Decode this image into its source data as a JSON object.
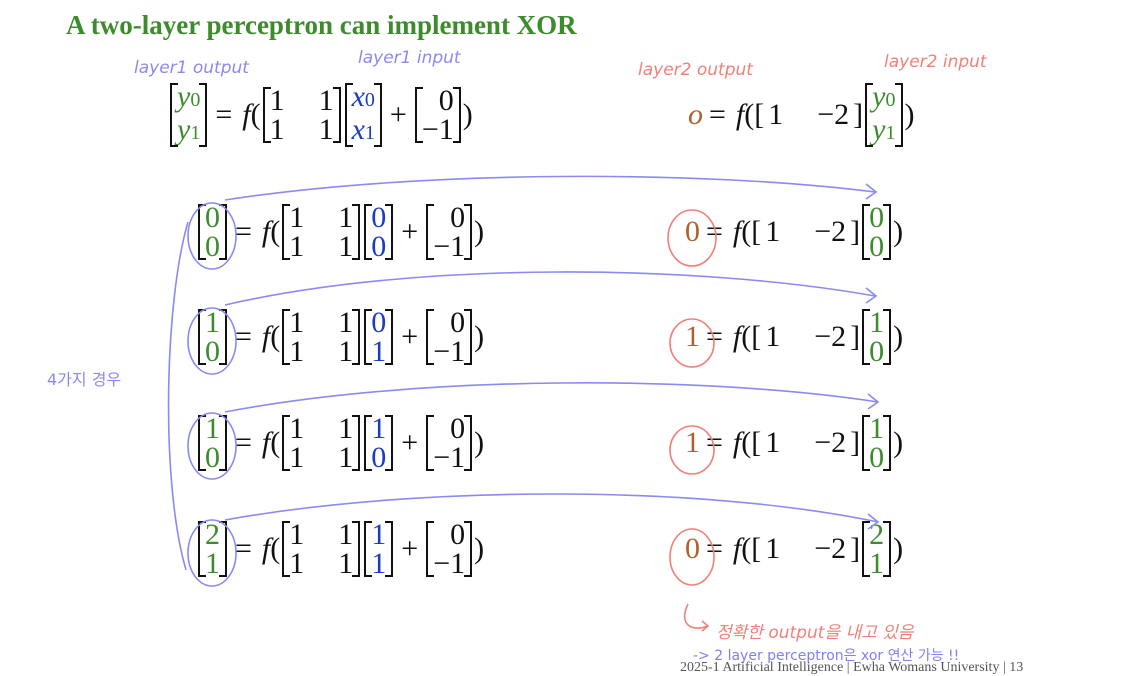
{
  "slide": {
    "title": "A two-layer perceptron can implement XOR",
    "footer": "2025-1 Artificial Intelligence  |  Ewha Womans University  | 13"
  },
  "annotations": {
    "layer1_output": "layer1 output",
    "layer1_input": "layer1 input",
    "layer2_output": "layer2 output",
    "layer2_input": "layer2 input",
    "cases": "4가지 경우",
    "correct_output": "정확한 output을 내고 있음",
    "conclusion": "-> 2 layer perceptron은 xor 연산 가능 !!",
    "ink_blue": "#8a8af2",
    "ink_red": "#f0807a"
  },
  "equation": {
    "f": "f",
    "W1": [
      "1",
      "1",
      "1",
      "1"
    ],
    "b1": [
      "0",
      "−1"
    ],
    "W2": [
      "1",
      "−2"
    ],
    "general": {
      "y0": "y",
      "y0_sub": "0",
      "y1": "y",
      "y1_sub": "1",
      "x0": "x",
      "x0_sub": "0",
      "x1": "x",
      "x1_sub": "1",
      "o": "o"
    }
  },
  "rows": [
    {
      "y0": "0",
      "y1": "0",
      "x0": "0",
      "x1": "0",
      "o": "0"
    },
    {
      "y0": "1",
      "y1": "0",
      "x0": "0",
      "x1": "1",
      "o": "1"
    },
    {
      "y0": "1",
      "y1": "0",
      "x0": "1",
      "x1": "0",
      "o": "1"
    },
    {
      "y0": "2",
      "y1": "1",
      "x0": "1",
      "x1": "1",
      "o": "0"
    }
  ],
  "colors": {
    "layer1_output": "#3c8c2c",
    "layer1_input": "#1c3cc0",
    "layer2_output": "#b0602a",
    "title": "#3c8c2c"
  }
}
